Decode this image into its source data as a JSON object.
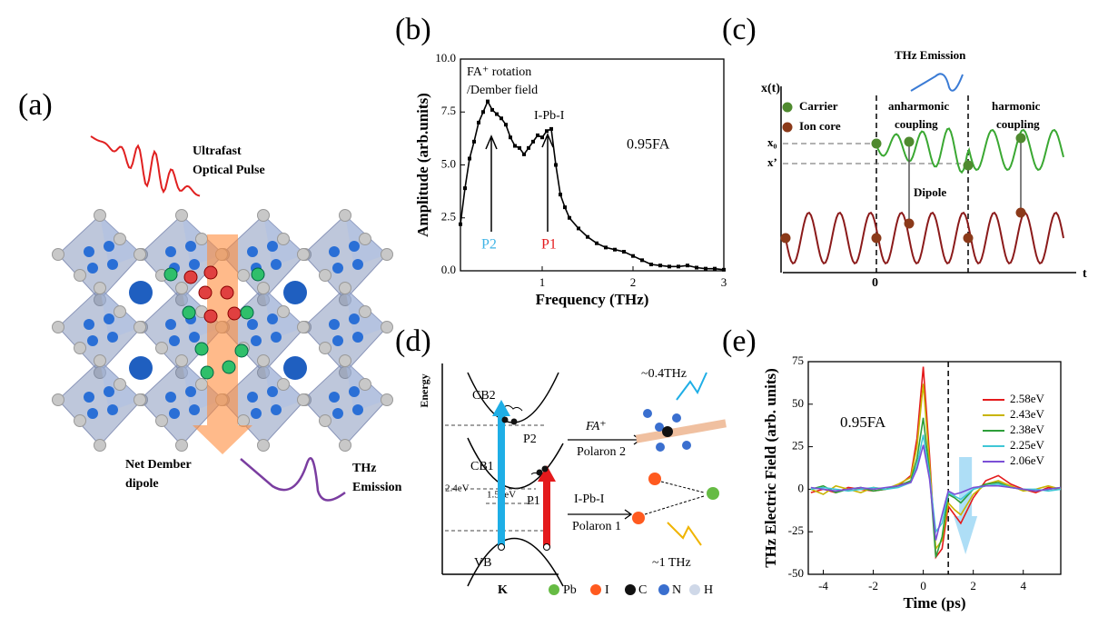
{
  "panel_a": {
    "label": "(a)",
    "pulse": [
      "Ultrafast",
      "Optical Pulse"
    ],
    "dipole": [
      "Net Dember",
      "dipole"
    ],
    "emission": [
      "THz",
      "Emission"
    ]
  },
  "panel_c": {
    "label": "(c)",
    "emission": "THz Emission",
    "yaxis": "x(t)",
    "xaxis": "t",
    "origin": "0",
    "legend": [
      "Carrier",
      "Ion core"
    ],
    "anharmonic": [
      "anharmonic",
      "coupling"
    ],
    "harmonic": [
      "harmonic",
      "coupling"
    ],
    "levels": [
      "x₀",
      "x’"
    ],
    "dipole": "Dipole"
  },
  "panel_d": {
    "label": "(d)",
    "yaxis": "Energy",
    "xaxis": "K",
    "bands": [
      "CB2",
      "CB1",
      "VB"
    ],
    "peaks": [
      "P2",
      "P1"
    ],
    "gaps": [
      "2.4eV",
      "1.55eV"
    ],
    "upper": [
      "FA⁺",
      "Polaron 2",
      "~0.4THz"
    ],
    "lower": [
      "I-Pb-I",
      "Polaron 1",
      "~1 THz"
    ],
    "legend": [
      "Pb",
      "I",
      "C",
      "N",
      "H"
    ]
  },
  "chart_data": [
    {
      "type": "line",
      "title": "(b)",
      "xlabel": "Frequency (THz)",
      "ylabel": "Amplitude (arb.units)",
      "color": "#000000",
      "marker": "square",
      "x": [
        0.1,
        0.15,
        0.2,
        0.25,
        0.3,
        0.35,
        0.4,
        0.45,
        0.5,
        0.55,
        0.6,
        0.65,
        0.7,
        0.75,
        0.8,
        0.85,
        0.9,
        0.95,
        1.0,
        1.05,
        1.1,
        1.15,
        1.2,
        1.25,
        1.3,
        1.4,
        1.5,
        1.6,
        1.7,
        1.8,
        1.9,
        2.0,
        2.1,
        2.2,
        2.3,
        2.4,
        2.5,
        2.6,
        2.7,
        2.8,
        2.9,
        3.0
      ],
      "values": [
        2.2,
        3.9,
        5.3,
        6.1,
        7.0,
        7.5,
        8.0,
        7.6,
        7.4,
        7.2,
        6.9,
        6.3,
        5.9,
        5.8,
        5.5,
        5.8,
        6.1,
        6.4,
        6.3,
        6.6,
        6.7,
        5.0,
        3.6,
        3.0,
        2.5,
        2.0,
        1.6,
        1.3,
        1.1,
        1.0,
        0.9,
        0.7,
        0.5,
        0.3,
        0.25,
        0.2,
        0.2,
        0.25,
        0.15,
        0.1,
        0.1,
        0.05
      ],
      "xlim": [
        0.1,
        3
      ],
      "xticks": [
        1,
        2,
        3
      ],
      "ylim": [
        0,
        10
      ],
      "yticks": [
        {
          "value": 0,
          "label": "0.0"
        },
        {
          "value": 2.5,
          "label": "2.5"
        },
        {
          "value": 5,
          "label": "5.0"
        },
        {
          "value": 7.5,
          "label": "7.5"
        },
        {
          "value": 10,
          "label": "10.0"
        }
      ],
      "annotations": [
        "FA⁺ rotation",
        "/Dember field",
        "I-Pb-I",
        "0.95FA",
        "P2",
        "P1"
      ]
    },
    {
      "type": "line",
      "title": "(e)",
      "xlabel": "Time (ps)",
      "ylabel": "THz Electric Field (arb. units)",
      "legend": "upper right",
      "x": [
        -4.5,
        -4,
        -3.5,
        -3,
        -2.5,
        -2,
        -1.5,
        -1,
        -0.5,
        -0.25,
        0,
        0.25,
        0.5,
        0.75,
        1,
        1.25,
        1.5,
        2,
        2.5,
        3,
        3.5,
        4,
        4.5,
        5,
        5.5
      ],
      "series": [
        {
          "name": "2.58eV",
          "color": "#e41a1c",
          "values": [
            -2,
            0,
            -2,
            1,
            0,
            -1,
            0,
            2,
            8,
            30,
            72,
            20,
            -40,
            -35,
            -10,
            -15,
            -20,
            -5,
            5,
            8,
            3,
            0,
            -2,
            1,
            0
          ]
        },
        {
          "name": "2.43eV",
          "color": "#c8b400",
          "values": [
            0,
            -3,
            2,
            0,
            -2,
            1,
            0,
            3,
            7,
            25,
            62,
            15,
            -35,
            -30,
            -8,
            -12,
            -15,
            -3,
            3,
            5,
            2,
            -1,
            0,
            2,
            0
          ]
        },
        {
          "name": "2.38eV",
          "color": "#2e9e3a",
          "values": [
            0,
            2,
            -2,
            0,
            1,
            -1,
            0,
            2,
            5,
            18,
            42,
            10,
            -40,
            -28,
            -3,
            -5,
            -8,
            0,
            3,
            4,
            1,
            0,
            -1,
            0,
            1
          ]
        },
        {
          "name": "2.25eV",
          "color": "#3fc6d6",
          "values": [
            0,
            1,
            0,
            -1,
            0,
            1,
            0,
            1,
            4,
            14,
            32,
            8,
            -25,
            -20,
            -2,
            -4,
            -6,
            0,
            2,
            3,
            1,
            0,
            0,
            -1,
            0
          ]
        },
        {
          "name": "2.06eV",
          "color": "#7b4fd6",
          "values": [
            1,
            0,
            -1,
            0,
            1,
            0,
            1,
            2,
            4,
            12,
            26,
            6,
            -30,
            -15,
            -1,
            -3,
            -2,
            1,
            2,
            2,
            1,
            0,
            -1,
            0,
            1
          ]
        }
      ],
      "xlim": [
        -4.6,
        5.5
      ],
      "xticks": [
        -4,
        -2,
        0,
        2,
        4
      ],
      "ylim": [
        -50,
        75
      ],
      "yticks": [
        -50,
        -25,
        0,
        25,
        50,
        75
      ],
      "vline": 1,
      "annotations": [
        "0.95FA"
      ]
    }
  ]
}
